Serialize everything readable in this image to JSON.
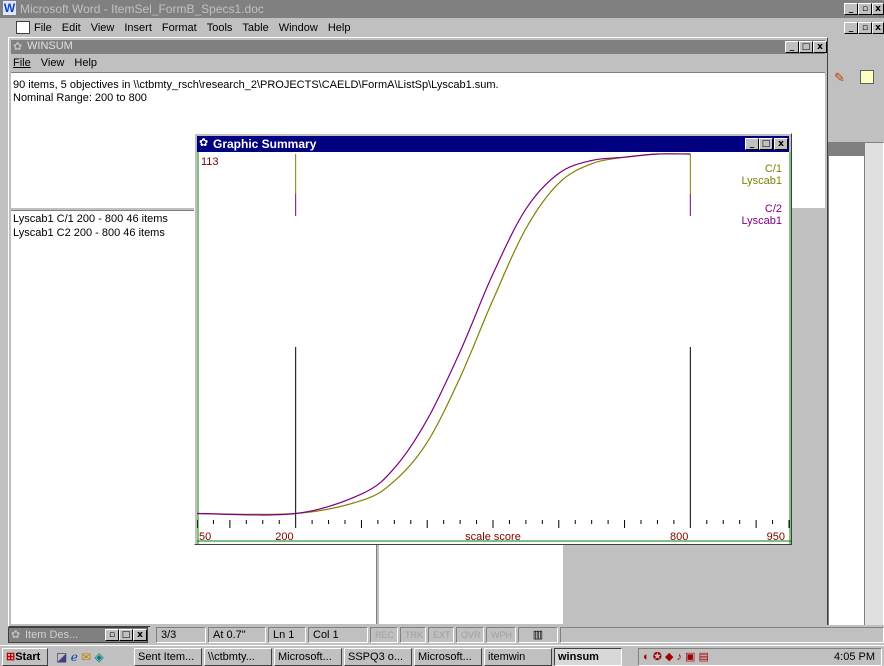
{
  "word": {
    "title": "Microsoft Word - ItemSel_FormB_Specs1.doc",
    "menu": [
      "File",
      "Edit",
      "View",
      "Insert",
      "Format",
      "Tools",
      "Table",
      "Window",
      "Help"
    ]
  },
  "winsum": {
    "title": "WINSUM",
    "menu": [
      "File",
      "View",
      "Help"
    ],
    "info_line1": "90 items, 5 objectives in \\\\ctbmty_rsch\\research_2\\PROJECTS\\CAELD\\FormA\\ListSp\\Lyscab1.sum.",
    "info_line2": "Nominal Range:  200 to 800",
    "list": [
      "Lyscab1  C/1  200 - 800   46 items",
      "Lyscab1  C2  200 - 800   46 items"
    ]
  },
  "graphic": {
    "title": "Graphic Summary",
    "corner_value": "113"
  },
  "chart_data": {
    "type": "line",
    "xlim": [
      50,
      950
    ],
    "ylim": [
      0,
      113
    ],
    "x_ticks": [
      "50",
      "200",
      "800",
      "950"
    ],
    "xlabel": "scale score",
    "vertical_lines": [
      200,
      800
    ],
    "series": [
      {
        "name": "C/1 Lyscab1",
        "label_top": "C/1",
        "label_bottom": "Lyscab1",
        "color": "#808000",
        "x": [
          50,
          200,
          300,
          350,
          400,
          450,
          500,
          550,
          600,
          650,
          700,
          750,
          800
        ],
        "y": [
          2,
          2,
          6,
          12,
          24,
          44,
          68,
          90,
          104,
          110,
          112,
          113,
          113
        ]
      },
      {
        "name": "C/2 Lyscab1",
        "label_top": "C/2",
        "label_bottom": "Lyscab1",
        "color": "#800080",
        "x": [
          50,
          200,
          300,
          350,
          400,
          450,
          500,
          550,
          600,
          650,
          700,
          750,
          800
        ],
        "y": [
          2,
          2,
          8,
          16,
          31,
          52,
          76,
          96,
          107,
          111,
          112,
          113,
          113
        ]
      }
    ]
  },
  "itemdes": {
    "title": "Item Des..."
  },
  "status": {
    "page": "3/3",
    "at": "At 0.7\"",
    "ln": "Ln 1",
    "col": "Col 1",
    "rec": "REC",
    "trk": "TRK",
    "ext": "EXT",
    "ovr": "OVR",
    "wph": "WPH"
  },
  "taskbar": {
    "start": "Start",
    "buttons": [
      "Sent Item...",
      "\\\\ctbmty...",
      "Microsoft...",
      "SSPQ3 o...",
      "Microsoft...",
      "itemwin",
      "winsum"
    ],
    "clock": "4:05 PM"
  }
}
